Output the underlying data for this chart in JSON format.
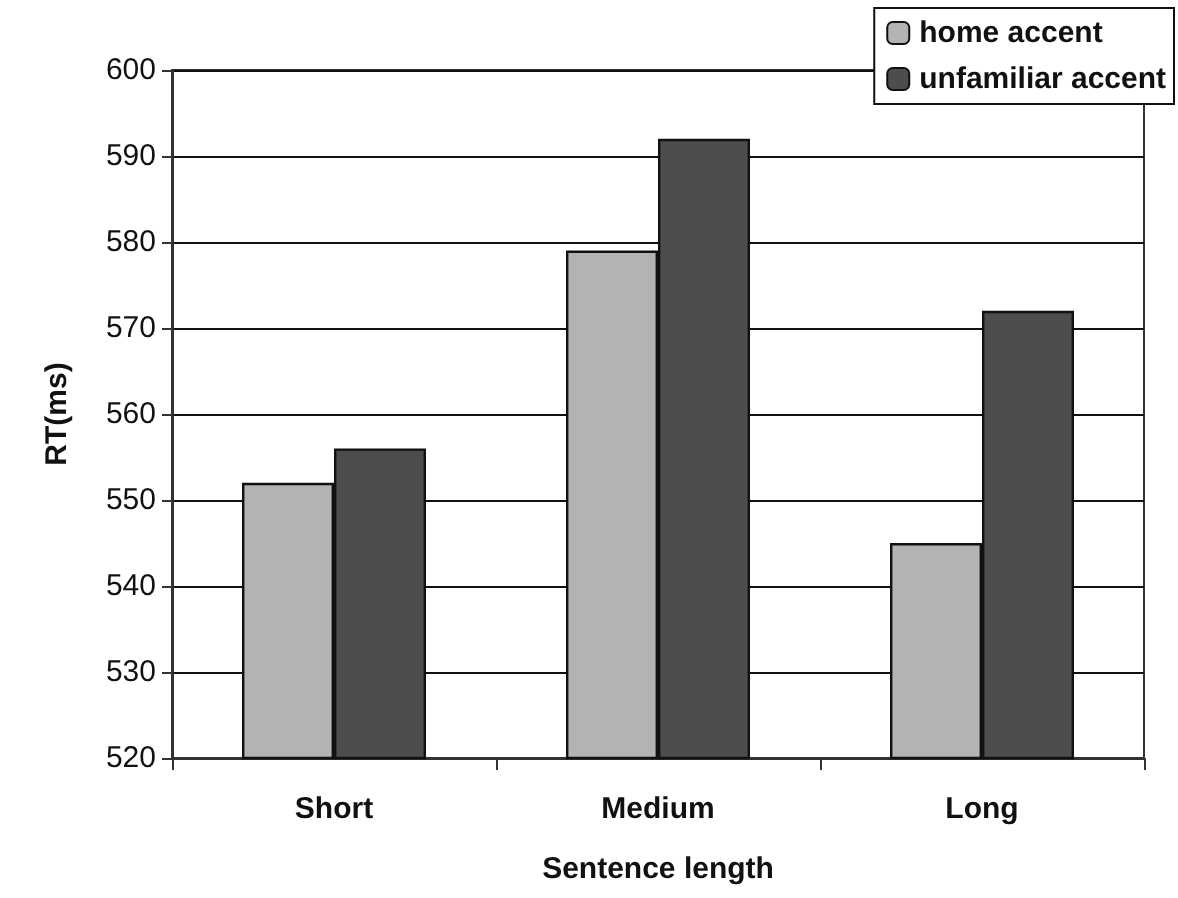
{
  "chart_data": {
    "type": "bar",
    "xlabel": "Sentence length",
    "ylabel": "RT(ms)",
    "categories": [
      "Short",
      "Medium",
      "Long"
    ],
    "series": [
      {
        "name": "home accent",
        "color": "#b3b3b3",
        "values": [
          552,
          579,
          545
        ]
      },
      {
        "name": "unfamiliar accent",
        "color": "#4d4d4d",
        "values": [
          556,
          592,
          572
        ]
      }
    ],
    "ylim": [
      520,
      600
    ],
    "yticks": [
      520,
      530,
      540,
      550,
      560,
      570,
      580,
      590,
      600
    ],
    "grid": "y",
    "legend": "top right"
  }
}
